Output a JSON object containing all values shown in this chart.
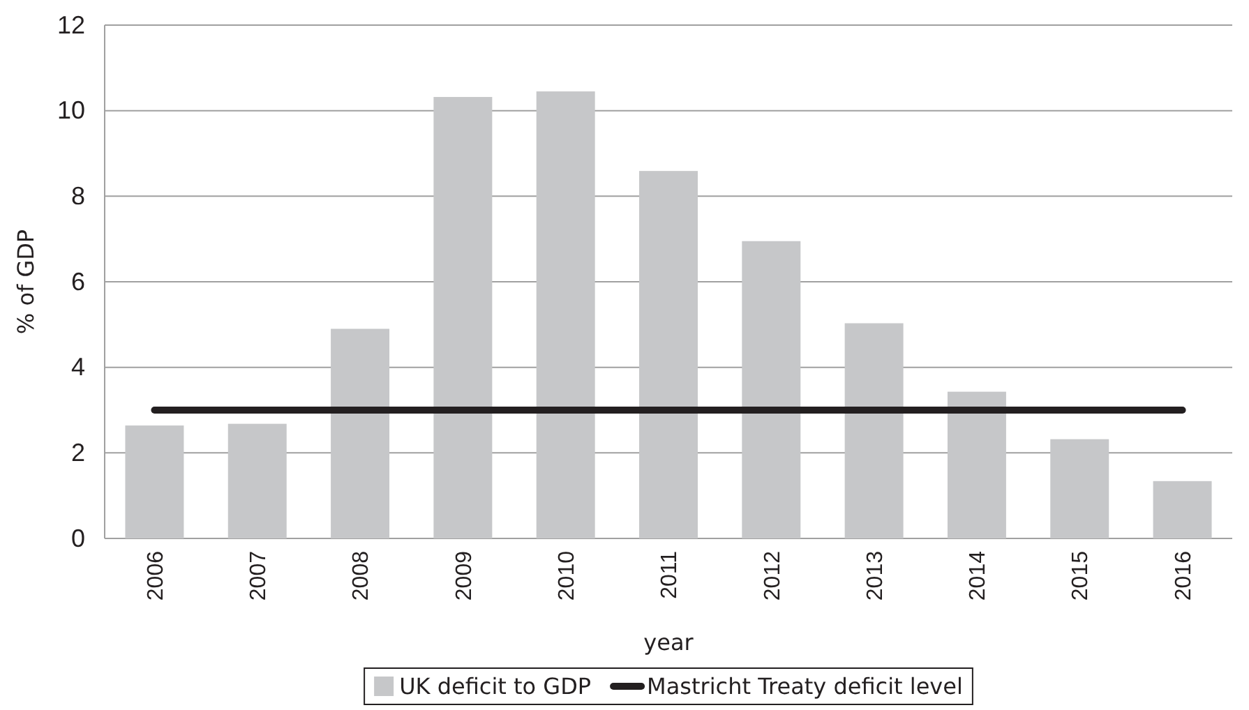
{
  "chart_data": {
    "type": "bar",
    "xlabel": "year",
    "ylabel": "% of GDP",
    "categories": [
      "2006",
      "2007",
      "2008",
      "2009",
      "2010",
      "2011",
      "2012",
      "2013",
      "2014",
      "2015",
      "2016"
    ],
    "series": [
      {
        "name": "UK deficit to GDP",
        "color": "#c6c7c9",
        "values": [
          2.64,
          2.68,
          4.9,
          10.32,
          10.45,
          8.59,
          6.95,
          5.03,
          3.43,
          2.32,
          1.34
        ]
      },
      {
        "name": "Mastricht Treaty deficit level",
        "type": "line",
        "color": "#231f20",
        "values": [
          3,
          3,
          3,
          3,
          3,
          3,
          3,
          3,
          3,
          3,
          3
        ]
      }
    ],
    "ylim": [
      0,
      12
    ],
    "yticks": [
      0,
      2,
      4,
      6,
      8,
      10,
      12
    ],
    "grid": "y",
    "legend": "bottom",
    "marker": "none"
  }
}
